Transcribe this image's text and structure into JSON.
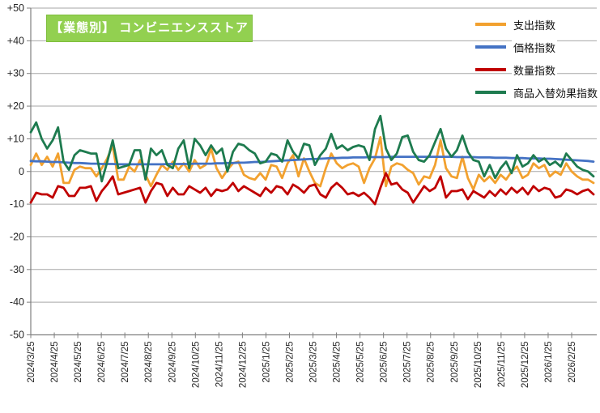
{
  "title": {
    "text": "【業態別】 コンビニエンスストア",
    "bg_color": "#92D050",
    "border_color": "#7EBE3C",
    "text_color": "#FFFFFF"
  },
  "legend": {
    "position": "top-right",
    "items": [
      {
        "label": "支出指数",
        "color": "#F2A12F"
      },
      {
        "label": "価格指数",
        "color": "#4472C4"
      },
      {
        "label": "数量指数",
        "color": "#C00000"
      },
      {
        "label": "商品入替効果指数",
        "color": "#1E7B4F"
      }
    ]
  },
  "chart_data": {
    "type": "line",
    "title": "【業態別】 コンビニエンスストア",
    "xlabel": "",
    "ylabel": "",
    "ylim": [
      -50,
      50
    ],
    "grid": true,
    "gridline_color": "#A6A6A6",
    "axis_color": "#7F7F7F",
    "tick_label_color": "#262626",
    "y_ticks": [
      50,
      40,
      30,
      20,
      10,
      0,
      -10,
      -20,
      -30,
      -40,
      -50
    ],
    "y_tick_labels": [
      "+50",
      "+40",
      "+30",
      "+20",
      "+10",
      "0",
      "-10",
      "-20",
      "-30",
      "-40",
      "-50"
    ],
    "x_tick_labels": [
      "2024/3/25",
      "2024/4/25",
      "2024/5/25",
      "2024/6/25",
      "2024/7/25",
      "2024/8/25",
      "2024/9/25",
      "2024/10/25",
      "2024/11/25",
      "2024/12/25",
      "2025/1/25",
      "2025/2/25",
      "2025/3/25",
      "2025/4/25",
      "2025/5/25",
      "2025/6/25",
      "2025/7/25",
      "2025/8/25",
      "2025/9/25",
      "2025/10/25",
      "2025/11/25",
      "2025/12/25",
      "2026/1/25",
      "2026/2/25"
    ],
    "x_frequency": "weekly",
    "series": [
      {
        "name": "支出指数",
        "color": "#F2A12F",
        "values": [
          2,
          5.5,
          2,
          4.5,
          1.5,
          5.5,
          -3.5,
          -3.5,
          0.5,
          1.5,
          1,
          1,
          -1.5,
          1,
          4,
          8,
          -2.5,
          -2.5,
          1.5,
          0,
          3.5,
          -1,
          -4.5,
          -1,
          2,
          0.5,
          3,
          0.5,
          2.5,
          0,
          3.5,
          1,
          2,
          7,
          1,
          -2,
          0.5,
          2.5,
          3,
          -1,
          -2,
          -2.5,
          -0.5,
          -2.5,
          2,
          1.5,
          -2,
          2.5,
          5,
          -1.5,
          4,
          0,
          -3.5,
          -4.5,
          1,
          5.5,
          2.5,
          1,
          2,
          2.5,
          1.5,
          -3.5,
          1,
          4,
          10.5,
          -4.5,
          1.5,
          2.5,
          2,
          0.5,
          -0.5,
          -4,
          -1.5,
          -2,
          2,
          9.5,
          1,
          -1.5,
          -2,
          4.5,
          -2,
          -5.5,
          -1,
          -3,
          -1.5,
          -3.5,
          -1,
          -2.5,
          0,
          1.5,
          -2,
          -1,
          2.5,
          1,
          2,
          -1.5,
          0,
          -1,
          2.5,
          0,
          -1.5,
          -2.5,
          -2.5,
          -3.5
        ]
      },
      {
        "name": "価格指数",
        "color": "#4472C4",
        "values": [
          3.2,
          3.1,
          3.1,
          3.0,
          2.9,
          2.9,
          2.8,
          2.7,
          2.6,
          2.6,
          2.5,
          2.4,
          2.4,
          2.3,
          2.3,
          2.3,
          2.2,
          2.2,
          2.2,
          2.2,
          2.2,
          2.2,
          2.2,
          2.2,
          2.2,
          2.3,
          2.3,
          2.3,
          2.3,
          2.3,
          2.4,
          2.4,
          2.4,
          2.4,
          2.5,
          2.5,
          2.6,
          2.6,
          2.7,
          2.7,
          2.8,
          2.9,
          2.9,
          3.0,
          3.1,
          3.2,
          3.3,
          3.4,
          3.5,
          3.6,
          3.7,
          3.8,
          3.8,
          3.9,
          4.0,
          4.1,
          4.1,
          4.2,
          4.2,
          4.3,
          4.3,
          4.3,
          4.4,
          4.4,
          4.4,
          4.4,
          4.5,
          4.5,
          4.5,
          4.5,
          4.5,
          4.5,
          4.5,
          4.5,
          4.5,
          4.5,
          4.5,
          4.5,
          4.4,
          4.4,
          4.4,
          4.4,
          4.3,
          4.3,
          4.3,
          4.2,
          4.2,
          4.2,
          4.1,
          4.1,
          4.1,
          4.0,
          4.0,
          4.0,
          3.9,
          3.9,
          3.8,
          3.7,
          3.6,
          3.5,
          3.4,
          3.3,
          3.2,
          3.0
        ]
      },
      {
        "name": "数量指数",
        "color": "#C00000",
        "values": [
          -9.5,
          -6.5,
          -7,
          -7,
          -8,
          -4.5,
          -5,
          -7.5,
          -7.5,
          -5,
          -5,
          -4.5,
          -9,
          -6,
          -4,
          -1.5,
          -7,
          -6.5,
          -6,
          -5.5,
          -5,
          -9.5,
          -6,
          -3.5,
          -4,
          -7.5,
          -5,
          -7,
          -7,
          -4.5,
          -5.5,
          -6.5,
          -5,
          -7.5,
          -5.5,
          -6,
          -5.5,
          -3.5,
          -6,
          -4.5,
          -5.5,
          -6.5,
          -7.5,
          -5,
          -6.5,
          -4.5,
          -5,
          -7,
          -4,
          -5,
          -6.5,
          -4.5,
          -4,
          -7,
          -8,
          -5,
          -3.5,
          -5,
          -7,
          -6.5,
          -7.5,
          -6.5,
          -8,
          -10,
          -5,
          -0.5,
          -4,
          -3.5,
          -5.5,
          -6.5,
          -9.5,
          -7,
          -4.5,
          -6,
          -5,
          -1.5,
          -8,
          -6,
          -6,
          -5.5,
          -8.5,
          -6,
          -7,
          -8,
          -6,
          -7.5,
          -5.5,
          -7,
          -5,
          -6.5,
          -5,
          -7,
          -4.5,
          -6,
          -5,
          -5.5,
          -8,
          -7.5,
          -5.5,
          -6,
          -7,
          -6,
          -5.5,
          -7
        ]
      },
      {
        "name": "商品入替効果指数",
        "color": "#1E7B4F",
        "values": [
          12,
          15,
          10,
          7,
          9.5,
          13.5,
          3,
          0.5,
          5,
          6.5,
          6,
          5.5,
          5.5,
          -3,
          3,
          9.5,
          1,
          1.5,
          2,
          6.5,
          6.5,
          -2.5,
          7,
          5,
          6.5,
          2,
          1,
          7,
          9.5,
          1,
          10,
          8,
          5,
          8,
          5.5,
          7,
          0,
          6,
          8.5,
          8,
          6.5,
          5.5,
          2.5,
          3,
          5.5,
          5,
          3,
          9.5,
          6,
          4,
          8.5,
          8,
          2,
          5,
          7,
          11.5,
          7,
          8,
          6.5,
          7.5,
          8,
          7.5,
          3.5,
          13,
          17,
          7,
          3.5,
          5.5,
          10.5,
          11,
          6,
          3.5,
          3,
          5,
          9,
          13,
          7,
          4.5,
          6.5,
          11,
          6,
          3.5,
          3,
          -1.5,
          2,
          -2,
          1,
          3,
          -0.5,
          5,
          1.5,
          2.5,
          5,
          3,
          4,
          2,
          3,
          1.5,
          5.5,
          3.5,
          1.5,
          0.5,
          0,
          -1.5
        ]
      }
    ]
  }
}
